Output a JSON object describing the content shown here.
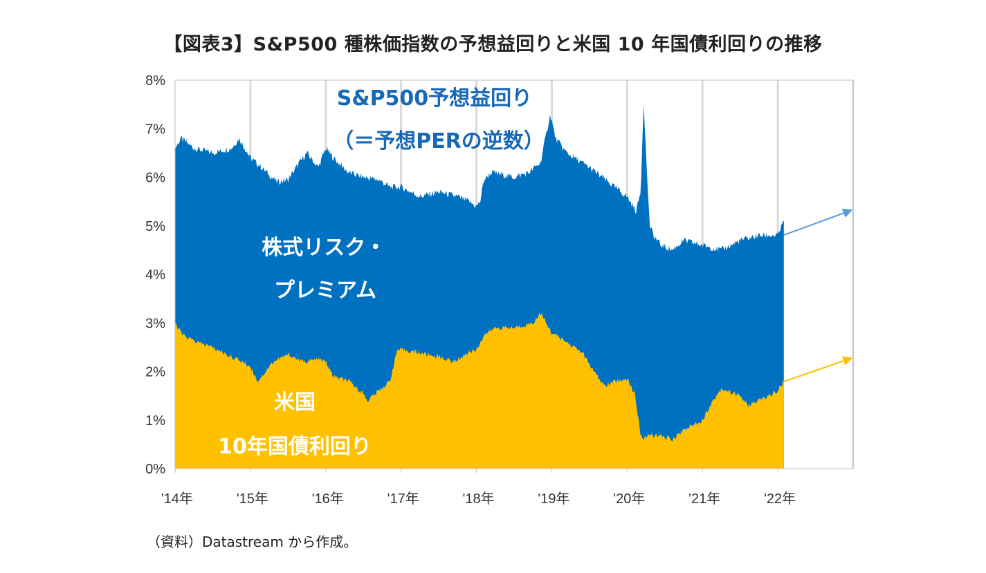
{
  "title": "【図表3】S&P500 種株価指数の予想益回りと米国 10 年国債利回りの推移",
  "source": "（資料）Datastream から作成。",
  "chart_data": {
    "type": "area",
    "title": "【図表3】S&P500 種株価指数の予想益回りと米国 10 年国債利回りの推移",
    "xlabel": "",
    "ylabel": "",
    "ylim": [
      0,
      8
    ],
    "xlim": [
      2014.0,
      2023.0
    ],
    "yticks": [
      "0%",
      "1%",
      "2%",
      "3%",
      "4%",
      "5%",
      "6%",
      "7%",
      "8%"
    ],
    "xticks": [
      "'14年",
      "'15年",
      "'16年",
      "'17年",
      "'18年",
      "'19年",
      "'20年",
      "'21年",
      "'22年"
    ],
    "grid": "vertical",
    "series": [
      {
        "name": "S&P500予想益回り",
        "color": "#0070c0",
        "x": [
          2014.0,
          2014.08,
          2014.25,
          2014.5,
          2014.75,
          2014.85,
          2015.0,
          2015.15,
          2015.35,
          2015.5,
          2015.65,
          2015.75,
          2015.9,
          2016.0,
          2016.1,
          2016.3,
          2016.5,
          2016.7,
          2016.85,
          2017.0,
          2017.25,
          2017.5,
          2017.75,
          2017.9,
          2018.0,
          2018.05,
          2018.1,
          2018.2,
          2018.5,
          2018.7,
          2018.85,
          2018.98,
          2019.05,
          2019.2,
          2019.5,
          2019.75,
          2020.0,
          2020.12,
          2020.18,
          2020.22,
          2020.25,
          2020.3,
          2020.35,
          2020.45,
          2020.6,
          2020.75,
          2021.0,
          2021.25,
          2021.5,
          2021.75,
          2022.0,
          2022.08
        ],
        "values": [
          6.6,
          6.8,
          6.6,
          6.5,
          6.6,
          6.8,
          6.4,
          6.2,
          5.9,
          5.95,
          6.3,
          6.5,
          6.2,
          6.6,
          6.4,
          6.1,
          6.0,
          5.95,
          5.8,
          5.8,
          5.6,
          5.7,
          5.6,
          5.5,
          5.4,
          5.5,
          5.95,
          6.1,
          6.0,
          6.1,
          6.3,
          7.3,
          6.8,
          6.5,
          6.2,
          5.9,
          5.6,
          5.3,
          5.7,
          7.6,
          6.5,
          5.0,
          4.8,
          4.6,
          4.5,
          4.7,
          4.6,
          4.5,
          4.7,
          4.8,
          4.8,
          5.1
        ]
      },
      {
        "name": "米国10年国債利回り",
        "color": "#ffc000",
        "x": [
          2014.0,
          2014.1,
          2014.3,
          2014.5,
          2014.75,
          2014.9,
          2015.0,
          2015.1,
          2015.3,
          2015.5,
          2015.7,
          2015.9,
          2016.0,
          2016.1,
          2016.3,
          2016.5,
          2016.55,
          2016.7,
          2016.85,
          2016.95,
          2017.2,
          2017.5,
          2017.7,
          2017.9,
          2018.0,
          2018.1,
          2018.25,
          2018.5,
          2018.75,
          2018.85,
          2019.0,
          2019.2,
          2019.4,
          2019.6,
          2019.7,
          2019.85,
          2020.0,
          2020.1,
          2020.18,
          2020.22,
          2020.3,
          2020.5,
          2020.6,
          2020.75,
          2021.0,
          2021.1,
          2021.25,
          2021.5,
          2021.6,
          2021.75,
          2022.0,
          2022.08
        ],
        "values": [
          3.0,
          2.75,
          2.6,
          2.5,
          2.3,
          2.2,
          2.1,
          1.8,
          2.2,
          2.35,
          2.2,
          2.25,
          2.2,
          1.9,
          1.8,
          1.55,
          1.4,
          1.6,
          1.8,
          2.45,
          2.4,
          2.3,
          2.2,
          2.4,
          2.45,
          2.75,
          2.9,
          2.9,
          3.0,
          3.2,
          2.8,
          2.6,
          2.4,
          1.9,
          1.7,
          1.8,
          1.85,
          1.55,
          0.7,
          0.6,
          0.7,
          0.65,
          0.6,
          0.8,
          1.0,
          1.3,
          1.65,
          1.5,
          1.3,
          1.4,
          1.6,
          1.8
        ]
      }
    ],
    "annotations": [
      {
        "text": "S&P500予想益回り",
        "series": "S&P500予想益回り"
      },
      {
        "text": "（＝予想PERの逆数）",
        "series": "S&P500予想益回り"
      },
      {
        "text": "株式リスク・",
        "region": "between"
      },
      {
        "text": "プレミアム",
        "region": "between"
      },
      {
        "text": "米国",
        "series": "米国10年国債利回り"
      },
      {
        "text": "10年国債利回り",
        "series": "米国10年国債利回り"
      }
    ]
  }
}
